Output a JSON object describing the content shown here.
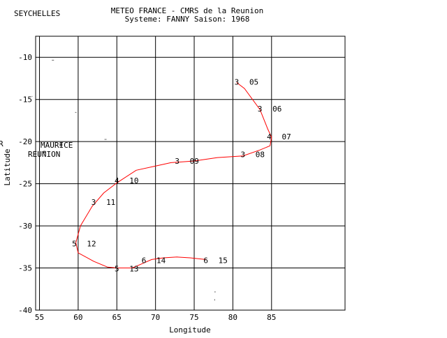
{
  "header": {
    "left_label": "SEYCHELLES",
    "title_line1": "METEO FRANCE - CMRS de la Reunion",
    "title_line2": "Systeme: FANNY  Saison: 1968"
  },
  "map_labels": {
    "mauritius": "MAURICE",
    "reunion": "REUNION",
    "stray_mark": "R"
  },
  "colors": {
    "track": "#ff0000",
    "axes": "#000000",
    "grid": "#000000",
    "land": "#000000"
  },
  "chart_data": {
    "type": "line",
    "title": "METEO FRANCE - CMRS de la Reunion",
    "subtitle": "Systeme: FANNY  Saison: 1968",
    "xlabel": "Longitude",
    "ylabel": "Latitude",
    "xlim": [
      54.5,
      94.5
    ],
    "ylim": [
      -40,
      -7.5
    ],
    "xticks": [
      55,
      60,
      65,
      70,
      75,
      80,
      85
    ],
    "yticks": [
      -10,
      -15,
      -20,
      -25,
      -30,
      -35,
      -40
    ],
    "grid": true,
    "series": [
      {
        "name": "FANNY",
        "x": [
          80.5,
          81.5,
          83.5,
          84.5,
          85.0,
          84.8,
          83.5,
          81.3,
          78.0,
          75.0,
          72.0,
          70.0,
          67.5,
          65.0,
          63.3,
          61.8,
          60.3,
          59.7,
          60.0,
          62.0,
          63.8,
          65.0,
          67.0,
          68.0,
          69.5,
          71.0,
          72.8,
          74.5,
          76.5
        ],
        "y": [
          -13.0,
          -13.7,
          -16.2,
          -18.5,
          -19.5,
          -20.5,
          -21.0,
          -21.7,
          -21.9,
          -22.3,
          -22.5,
          -22.9,
          -23.4,
          -24.9,
          -26.1,
          -27.7,
          -30.0,
          -32.0,
          -33.2,
          -34.2,
          -34.9,
          -35.0,
          -35.0,
          -34.6,
          -34.0,
          -33.8,
          -33.7,
          -33.8,
          -34.0
        ]
      }
    ],
    "positions": [
      {
        "x": 80.5,
        "y": -12.9,
        "intensity": "3",
        "day": "05"
      },
      {
        "x": 83.5,
        "y": -16.1,
        "intensity": "3",
        "day": "06"
      },
      {
        "x": 84.7,
        "y": -19.4,
        "intensity": "4",
        "day": "07"
      },
      {
        "x": 81.3,
        "y": -21.5,
        "intensity": "3",
        "day": "08"
      },
      {
        "x": 72.8,
        "y": -22.3,
        "intensity": "3",
        "day": "09"
      },
      {
        "x": 65.0,
        "y": -24.6,
        "intensity": "4",
        "day": "10"
      },
      {
        "x": 62.0,
        "y": -27.2,
        "intensity": "3",
        "day": "11"
      },
      {
        "x": 59.5,
        "y": -32.1,
        "intensity": "5",
        "day": "12"
      },
      {
        "x": 65.0,
        "y": -35.1,
        "intensity": "5",
        "day": "13"
      },
      {
        "x": 68.5,
        "y": -34.1,
        "intensity": "6",
        "day": "14"
      },
      {
        "x": 76.5,
        "y": -34.1,
        "intensity": "6",
        "day": "15"
      }
    ]
  }
}
